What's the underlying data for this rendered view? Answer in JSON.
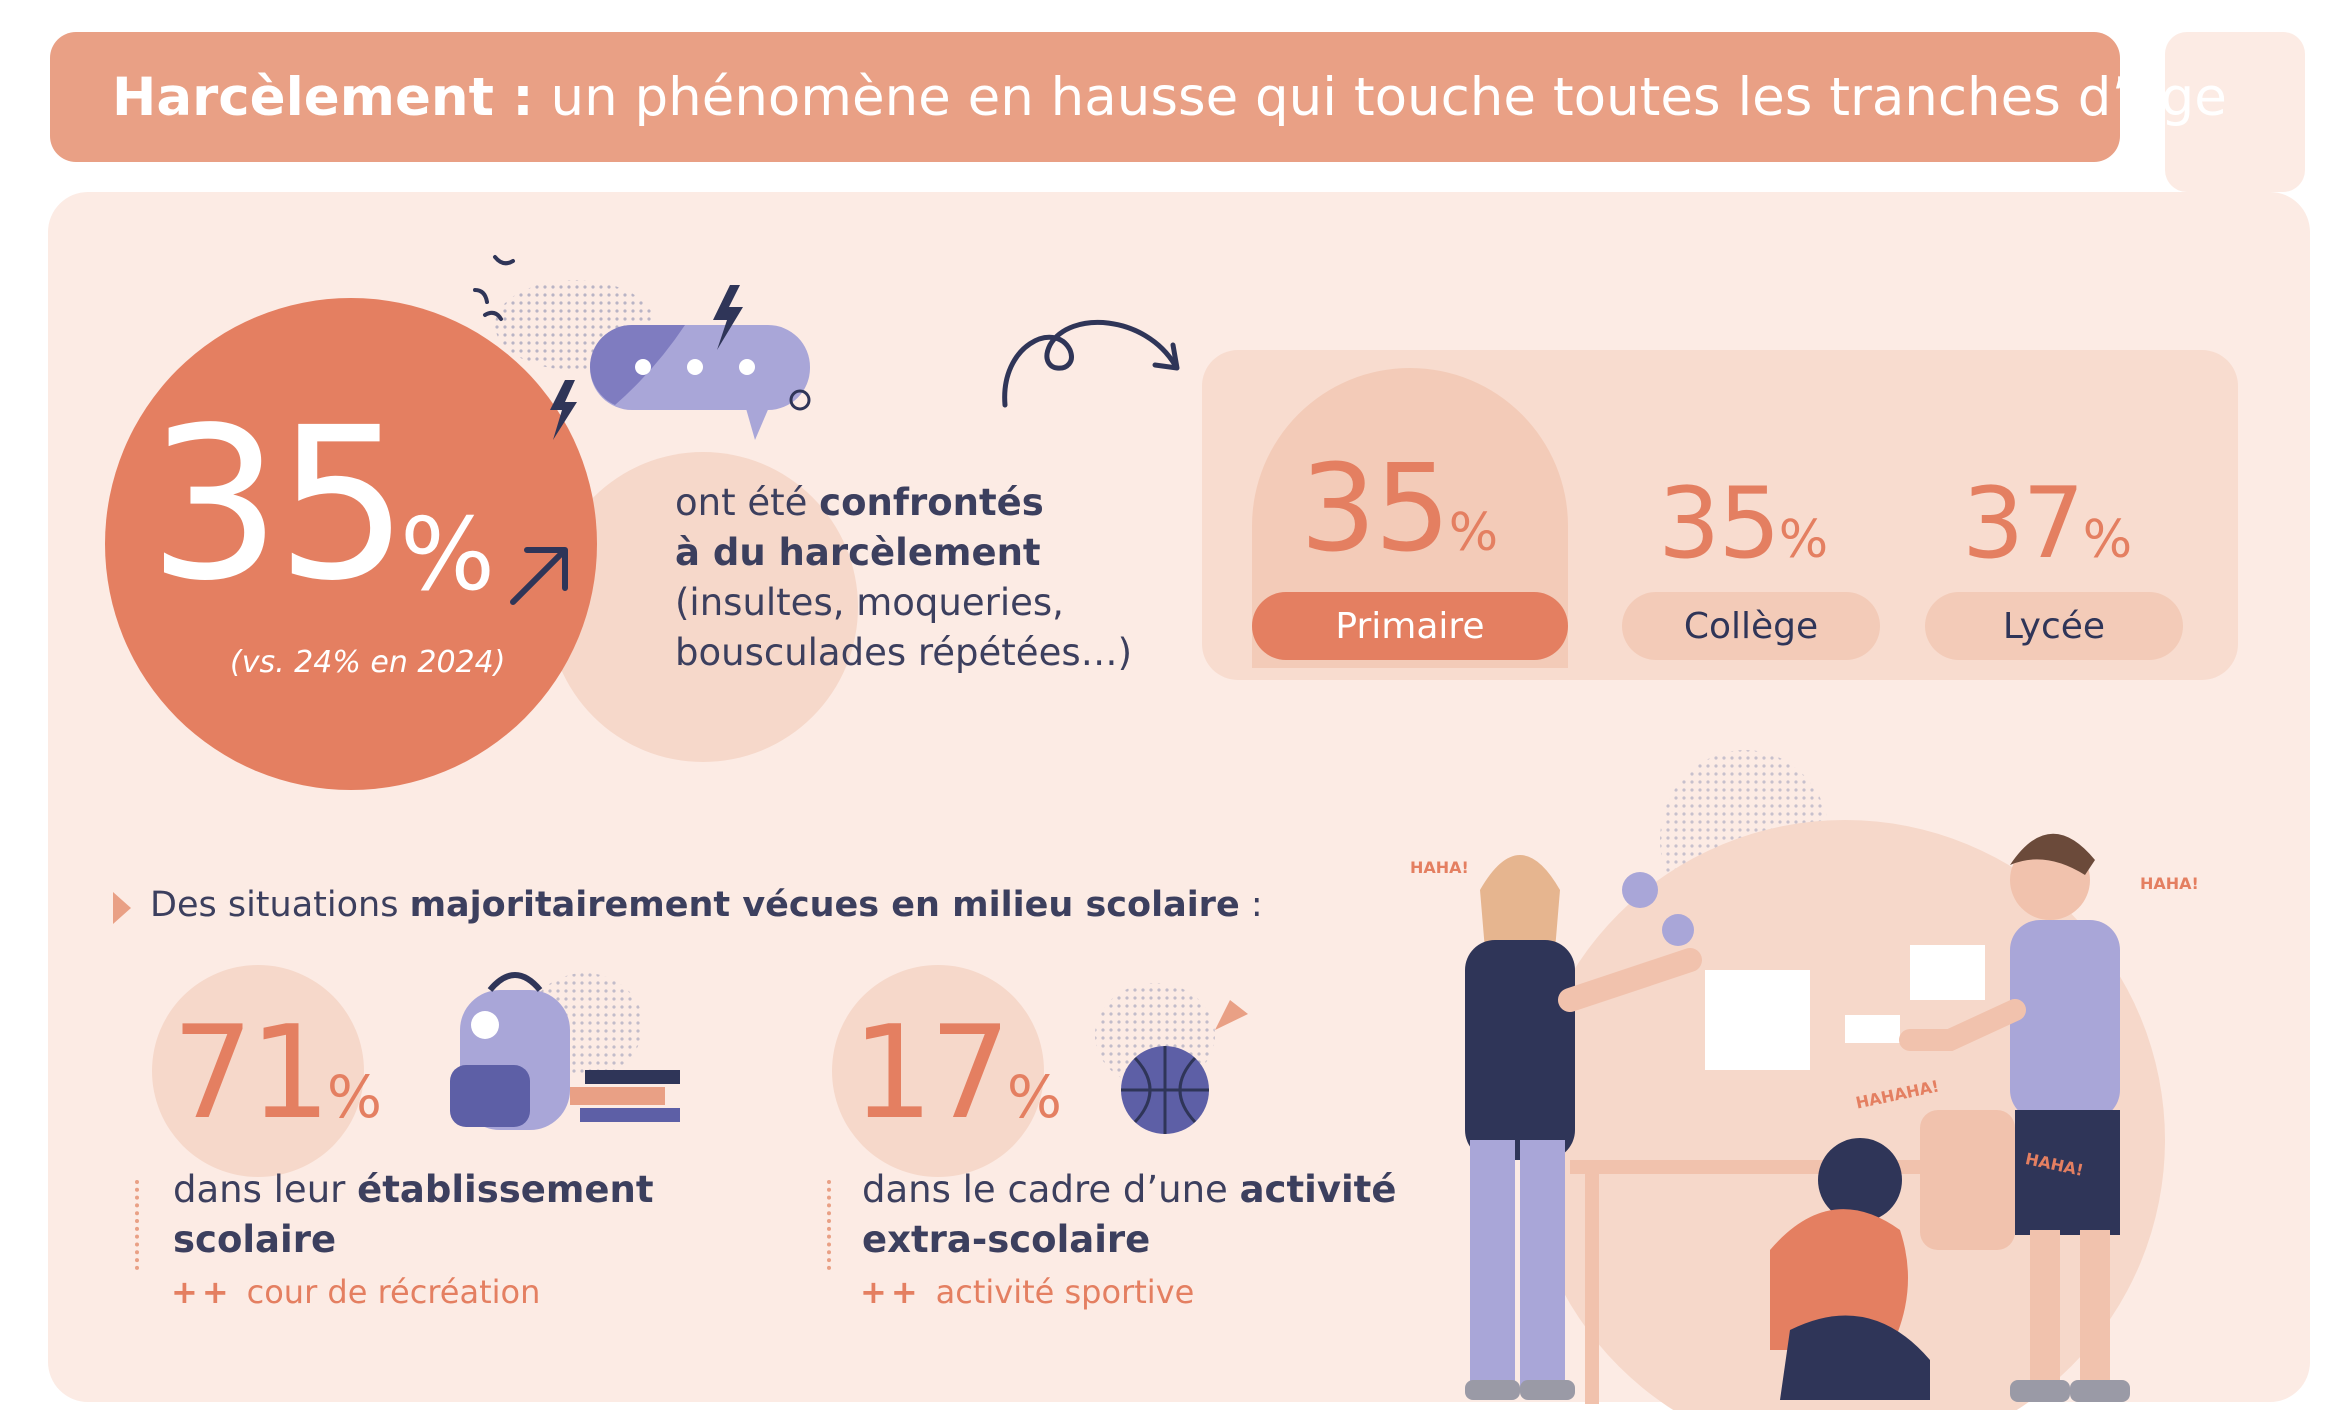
{
  "title": {
    "bold": "Harcèlement :",
    "rest": " un phénomène en hausse qui touche toutes les tranches d’âge"
  },
  "headline": {
    "value": "35",
    "unit": "%",
    "comparison": "(vs. 24% en 2024)",
    "text_plain_1": "ont été ",
    "text_bold_1": "confrontés",
    "text_bold_2": "à du harcèlement",
    "text_plain_2": "(insultes, moqueries,",
    "text_plain_3": "bousculades répétées…)"
  },
  "levels": [
    {
      "value": "35",
      "unit": "%",
      "label": "Primaire"
    },
    {
      "value": "35",
      "unit": "%",
      "label": "Collège"
    },
    {
      "value": "37",
      "unit": "%",
      "label": "Lycée"
    }
  ],
  "situations": {
    "intro_plain": "Des situations ",
    "intro_bold": "majoritairement vécues en milieu scolaire",
    "intro_end": " :",
    "items": [
      {
        "value": "71",
        "unit": "%",
        "text_plain": "dans leur ",
        "text_bold_1": "établissement",
        "text_bold_2": "scolaire",
        "plus": "++",
        "detail": "cour de récréation"
      },
      {
        "value": "17",
        "unit": "%",
        "text_plain": "dans le cadre d’une ",
        "text_bold_1": "activité",
        "text_bold_2": "extra-scolaire",
        "plus": "++",
        "detail": "activité sportive"
      }
    ]
  },
  "illustration_text": {
    "haha_1": "HAHA!",
    "haha_2": "HAHA!",
    "haha_3": "HAHAHA!",
    "haha_4": "HAHA!"
  },
  "colors": {
    "accent": "#e47f61",
    "title_bar": "#e9a085",
    "panel": "#fcebe4",
    "navy": "#2f3558",
    "lavender": "#a9a6d8"
  }
}
